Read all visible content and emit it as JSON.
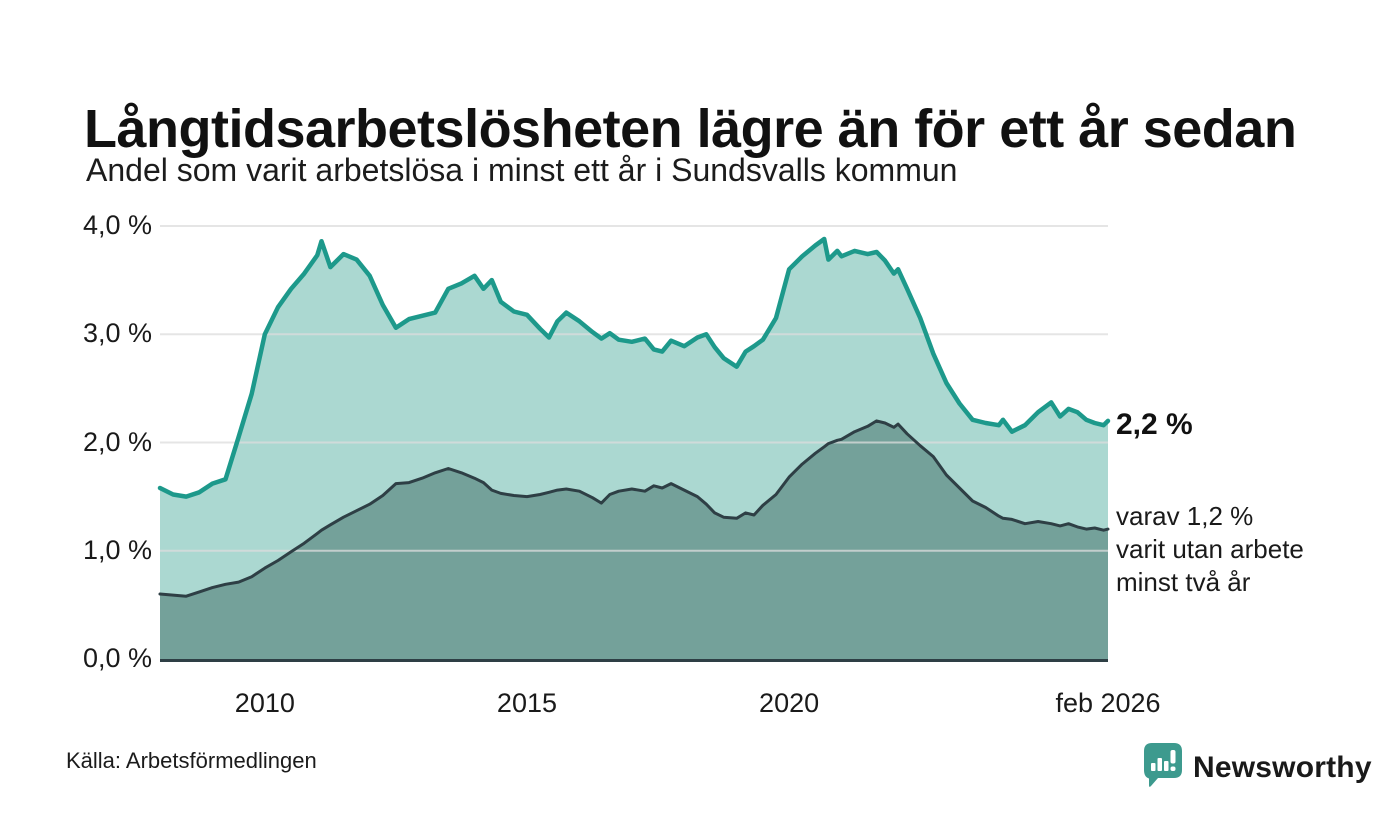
{
  "header": {
    "title": "Långtidsarbetslösheten lägre än för ett år sedan",
    "subtitle": "Andel som varit arbetslösa i minst ett år i Sundsvalls kommun"
  },
  "annotations": {
    "latest_total": "2,2 %",
    "two_year_note_lines": [
      "varav 1,2 %",
      "varit utan arbete",
      "minst två år"
    ]
  },
  "footer": {
    "source": "Källa: Arbetsförmedlingen",
    "brand": "Newsworthy"
  },
  "colors": {
    "total_line": "#1d998b",
    "total_fill": "#abd8d1",
    "two_year_line": "#2e3f45",
    "two_year_fill": "#74a19a",
    "grid": "#dddddd",
    "axis": "#2e3f45",
    "brand_teal": "#3d9a8e",
    "text": "#1a1a1a"
  },
  "chart_data": {
    "type": "area",
    "title": "Långtidsarbetslösheten lägre än för ett år sedan",
    "subtitle": "Andel som varit arbetslösa i minst ett år i Sundsvalls kommun",
    "xlabel": "",
    "ylabel": "",
    "x_unit": "decimal_year",
    "x_range": [
      2008.0,
      2026.083
    ],
    "ylim": [
      0,
      4.0
    ],
    "grid": true,
    "legend_position": "direct-labels-right",
    "y_ticks": [
      {
        "label": "0,0 %",
        "value": 0
      },
      {
        "label": "1,0 %",
        "value": 1
      },
      {
        "label": "2,0 %",
        "value": 2
      },
      {
        "label": "3,0 %",
        "value": 3
      },
      {
        "label": "4,0 %",
        "value": 4
      }
    ],
    "x_ticks": [
      {
        "label": "2010",
        "value": 2010
      },
      {
        "label": "2015",
        "value": 2015
      },
      {
        "label": "2020",
        "value": 2020
      },
      {
        "label": "feb 2026",
        "value": 2026.083
      }
    ],
    "series": [
      {
        "id": "total",
        "name": "Andel arbetslösa minst ett år",
        "end_label": "2,2 %",
        "color": "#1d998b",
        "fill": "#abd8d1",
        "values": [
          [
            2008.0,
            1.58
          ],
          [
            2008.25,
            1.52
          ],
          [
            2008.5,
            1.5
          ],
          [
            2008.75,
            1.54
          ],
          [
            2009.0,
            1.62
          ],
          [
            2009.25,
            1.66
          ],
          [
            2009.5,
            2.05
          ],
          [
            2009.75,
            2.45
          ],
          [
            2010.0,
            3.0
          ],
          [
            2010.25,
            3.25
          ],
          [
            2010.5,
            3.42
          ],
          [
            2010.75,
            3.56
          ],
          [
            2011.0,
            3.73
          ],
          [
            2011.08,
            3.86
          ],
          [
            2011.25,
            3.62
          ],
          [
            2011.5,
            3.74
          ],
          [
            2011.75,
            3.69
          ],
          [
            2012.0,
            3.54
          ],
          [
            2012.25,
            3.27
          ],
          [
            2012.5,
            3.06
          ],
          [
            2012.75,
            3.14
          ],
          [
            2013.0,
            3.17
          ],
          [
            2013.25,
            3.2
          ],
          [
            2013.5,
            3.42
          ],
          [
            2013.75,
            3.47
          ],
          [
            2014.0,
            3.54
          ],
          [
            2014.17,
            3.42
          ],
          [
            2014.33,
            3.5
          ],
          [
            2014.5,
            3.3
          ],
          [
            2014.75,
            3.21
          ],
          [
            2015.0,
            3.18
          ],
          [
            2015.25,
            3.05
          ],
          [
            2015.42,
            2.97
          ],
          [
            2015.58,
            3.12
          ],
          [
            2015.75,
            3.2
          ],
          [
            2016.0,
            3.12
          ],
          [
            2016.25,
            3.02
          ],
          [
            2016.42,
            2.96
          ],
          [
            2016.58,
            3.01
          ],
          [
            2016.75,
            2.95
          ],
          [
            2017.0,
            2.93
          ],
          [
            2017.25,
            2.96
          ],
          [
            2017.42,
            2.86
          ],
          [
            2017.58,
            2.84
          ],
          [
            2017.75,
            2.94
          ],
          [
            2018.0,
            2.89
          ],
          [
            2018.25,
            2.97
          ],
          [
            2018.42,
            3.0
          ],
          [
            2018.58,
            2.88
          ],
          [
            2018.75,
            2.78
          ],
          [
            2019.0,
            2.7
          ],
          [
            2019.17,
            2.84
          ],
          [
            2019.33,
            2.89
          ],
          [
            2019.5,
            2.95
          ],
          [
            2019.75,
            3.15
          ],
          [
            2020.0,
            3.6
          ],
          [
            2020.25,
            3.72
          ],
          [
            2020.5,
            3.82
          ],
          [
            2020.67,
            3.88
          ],
          [
            2020.75,
            3.69
          ],
          [
            2020.92,
            3.77
          ],
          [
            2021.0,
            3.72
          ],
          [
            2021.25,
            3.77
          ],
          [
            2021.5,
            3.74
          ],
          [
            2021.67,
            3.76
          ],
          [
            2021.83,
            3.68
          ],
          [
            2022.0,
            3.56
          ],
          [
            2022.08,
            3.6
          ],
          [
            2022.25,
            3.42
          ],
          [
            2022.5,
            3.15
          ],
          [
            2022.75,
            2.82
          ],
          [
            2023.0,
            2.55
          ],
          [
            2023.25,
            2.36
          ],
          [
            2023.5,
            2.21
          ],
          [
            2023.75,
            2.18
          ],
          [
            2024.0,
            2.16
          ],
          [
            2024.08,
            2.21
          ],
          [
            2024.25,
            2.1
          ],
          [
            2024.5,
            2.16
          ],
          [
            2024.75,
            2.28
          ],
          [
            2025.0,
            2.37
          ],
          [
            2025.17,
            2.24
          ],
          [
            2025.33,
            2.31
          ],
          [
            2025.5,
            2.28
          ],
          [
            2025.67,
            2.21
          ],
          [
            2025.83,
            2.18
          ],
          [
            2026.0,
            2.16
          ],
          [
            2026.083,
            2.2
          ]
        ]
      },
      {
        "id": "two-year",
        "name": "Andel arbetslösa minst två år",
        "end_label": "1,2 %",
        "color": "#2e3f45",
        "fill": "#74a19a",
        "values": [
          [
            2008.0,
            0.6
          ],
          [
            2008.25,
            0.59
          ],
          [
            2008.5,
            0.58
          ],
          [
            2008.75,
            0.62
          ],
          [
            2009.0,
            0.66
          ],
          [
            2009.25,
            0.69
          ],
          [
            2009.5,
            0.71
          ],
          [
            2009.75,
            0.76
          ],
          [
            2010.0,
            0.84
          ],
          [
            2010.25,
            0.91
          ],
          [
            2010.5,
            0.99
          ],
          [
            2010.75,
            1.07
          ],
          [
            2011.0,
            1.16
          ],
          [
            2011.08,
            1.19
          ],
          [
            2011.25,
            1.24
          ],
          [
            2011.5,
            1.31
          ],
          [
            2011.75,
            1.37
          ],
          [
            2012.0,
            1.43
          ],
          [
            2012.25,
            1.51
          ],
          [
            2012.5,
            1.62
          ],
          [
            2012.75,
            1.63
          ],
          [
            2013.0,
            1.67
          ],
          [
            2013.25,
            1.72
          ],
          [
            2013.5,
            1.76
          ],
          [
            2013.75,
            1.72
          ],
          [
            2014.0,
            1.67
          ],
          [
            2014.17,
            1.63
          ],
          [
            2014.33,
            1.56
          ],
          [
            2014.5,
            1.53
          ],
          [
            2014.75,
            1.51
          ],
          [
            2015.0,
            1.5
          ],
          [
            2015.25,
            1.52
          ],
          [
            2015.42,
            1.54
          ],
          [
            2015.58,
            1.56
          ],
          [
            2015.75,
            1.57
          ],
          [
            2016.0,
            1.55
          ],
          [
            2016.25,
            1.49
          ],
          [
            2016.42,
            1.44
          ],
          [
            2016.58,
            1.52
          ],
          [
            2016.75,
            1.55
          ],
          [
            2017.0,
            1.57
          ],
          [
            2017.25,
            1.55
          ],
          [
            2017.42,
            1.6
          ],
          [
            2017.58,
            1.58
          ],
          [
            2017.75,
            1.62
          ],
          [
            2018.0,
            1.56
          ],
          [
            2018.25,
            1.5
          ],
          [
            2018.42,
            1.43
          ],
          [
            2018.58,
            1.35
          ],
          [
            2018.75,
            1.31
          ],
          [
            2019.0,
            1.3
          ],
          [
            2019.17,
            1.35
          ],
          [
            2019.33,
            1.33
          ],
          [
            2019.5,
            1.42
          ],
          [
            2019.75,
            1.52
          ],
          [
            2020.0,
            1.68
          ],
          [
            2020.25,
            1.8
          ],
          [
            2020.5,
            1.9
          ],
          [
            2020.67,
            1.96
          ],
          [
            2020.75,
            1.99
          ],
          [
            2020.92,
            2.02
          ],
          [
            2021.0,
            2.03
          ],
          [
            2021.25,
            2.1
          ],
          [
            2021.5,
            2.15
          ],
          [
            2021.67,
            2.2
          ],
          [
            2021.83,
            2.18
          ],
          [
            2022.0,
            2.14
          ],
          [
            2022.08,
            2.17
          ],
          [
            2022.25,
            2.08
          ],
          [
            2022.5,
            1.97
          ],
          [
            2022.75,
            1.87
          ],
          [
            2023.0,
            1.7
          ],
          [
            2023.25,
            1.58
          ],
          [
            2023.5,
            1.46
          ],
          [
            2023.75,
            1.4
          ],
          [
            2024.0,
            1.32
          ],
          [
            2024.08,
            1.3
          ],
          [
            2024.25,
            1.29
          ],
          [
            2024.5,
            1.25
          ],
          [
            2024.75,
            1.27
          ],
          [
            2025.0,
            1.25
          ],
          [
            2025.17,
            1.23
          ],
          [
            2025.33,
            1.25
          ],
          [
            2025.5,
            1.22
          ],
          [
            2025.67,
            1.2
          ],
          [
            2025.83,
            1.21
          ],
          [
            2026.0,
            1.19
          ],
          [
            2026.083,
            1.2
          ]
        ]
      }
    ]
  }
}
